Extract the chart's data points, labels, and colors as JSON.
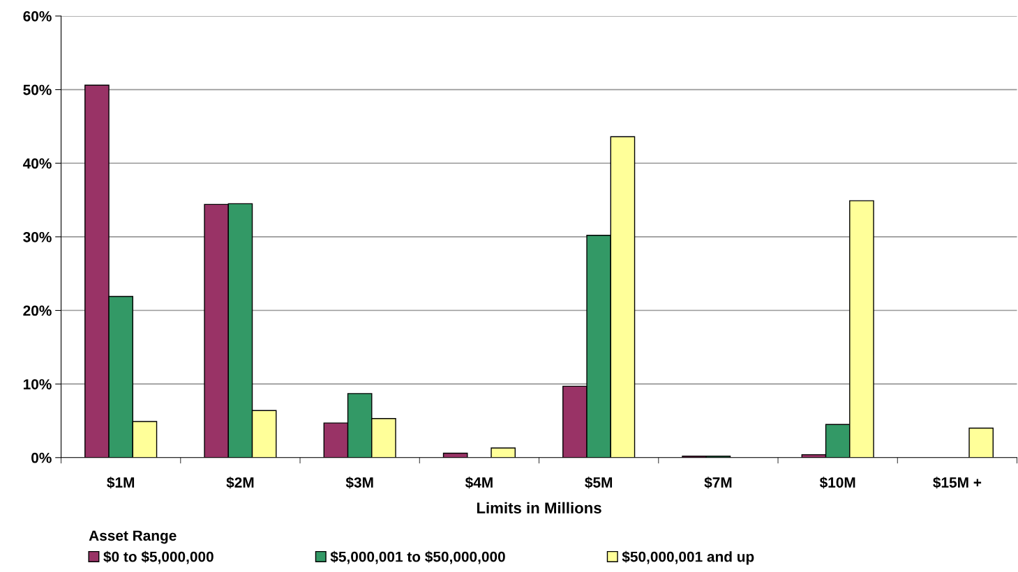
{
  "chart_data": {
    "type": "bar",
    "xlabel": "Limits in Millions",
    "legend_title": "Asset Range",
    "legend": "bottom",
    "grid": "y",
    "categories": [
      "$1M",
      "$2M",
      "$3M",
      "$4M",
      "$5M",
      "$7M",
      "$10M",
      "$15M +"
    ],
    "series": [
      {
        "name": "$0 to $5,000,000",
        "color": "#993366",
        "values": [
          50.6,
          34.4,
          4.7,
          0.6,
          9.7,
          0.2,
          0.4,
          0
        ]
      },
      {
        "name": "$5,000,001 to $50,000,000",
        "color": "#339966",
        "values": [
          21.9,
          34.5,
          8.7,
          0,
          30.2,
          0.2,
          4.5,
          0
        ]
      },
      {
        "name": "$50,000,001 and up",
        "color": "#ffff99",
        "values": [
          4.9,
          6.4,
          5.3,
          1.3,
          43.6,
          0,
          34.9,
          4.0
        ]
      }
    ],
    "ylim": [
      0,
      60
    ],
    "yticks": [
      {
        "value": 0,
        "label": "0%"
      },
      {
        "value": 10,
        "label": "10%"
      },
      {
        "value": 20,
        "label": "20%"
      },
      {
        "value": 30,
        "label": "30%"
      },
      {
        "value": 40,
        "label": "40%"
      },
      {
        "value": 50,
        "label": "50%"
      },
      {
        "value": 60,
        "label": "60%"
      }
    ]
  }
}
